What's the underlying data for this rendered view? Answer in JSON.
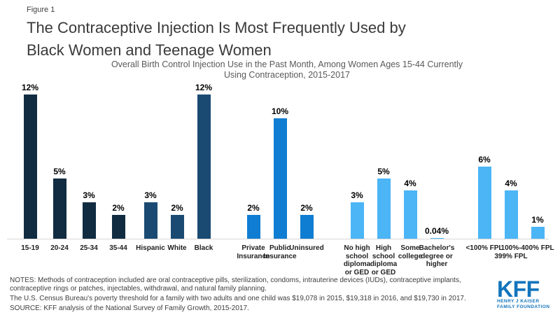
{
  "header": {
    "figure_label": "Figure 1",
    "title_line1": "The Contraceptive Injection Is Most Frequently Used by",
    "title_line2": "Black Women and Teenage Women",
    "subtitle_line1": "Overall Birth Control Injection Use in the Past Month, Among Women Ages 15-44 Currently",
    "subtitle_line2": "Using Contraception, 2015-2017"
  },
  "chart_data": {
    "type": "bar",
    "title": "The Contraceptive Injection Is Most Frequently Used by Black Women and Teenage Women",
    "subtitle": "Overall Birth Control Injection Use in the Past Month, Among Women Ages 15-44 Currently Using Contraception, 2015-2017",
    "unit": "%",
    "ylim": [
      0,
      13
    ],
    "grid": false,
    "legend": false,
    "value_labels_shown": true,
    "groups": [
      {
        "name": "age",
        "color": "#112c41",
        "bars": [
          {
            "label_lines": [
              "15-19"
            ],
            "value": 12,
            "display": "12%"
          },
          {
            "label_lines": [
              "20-24"
            ],
            "value": 5,
            "display": "5%"
          },
          {
            "label_lines": [
              "25-34"
            ],
            "value": 3,
            "display": "3%"
          },
          {
            "label_lines": [
              "35-44"
            ],
            "value": 2,
            "display": "2%"
          }
        ]
      },
      {
        "name": "race-ethnicity",
        "color": "#1a4a72",
        "bars": [
          {
            "label_lines": [
              "Hispanic"
            ],
            "value": 3,
            "display": "3%"
          },
          {
            "label_lines": [
              "White"
            ],
            "value": 2,
            "display": "2%"
          },
          {
            "label_lines": [
              "Black"
            ],
            "value": 12,
            "display": "12%"
          }
        ]
      },
      {
        "name": "insurance",
        "color": "#0f7dd2",
        "bars": [
          {
            "label_lines": [
              "Private",
              "Insurance"
            ],
            "value": 2,
            "display": "2%"
          },
          {
            "label_lines": [
              "Public",
              "Insurance"
            ],
            "value": 10,
            "display": "10%"
          },
          {
            "label_lines": [
              "Uninsured"
            ],
            "value": 2,
            "display": "2%"
          }
        ]
      },
      {
        "name": "education",
        "color": "#4bb5f6",
        "bars": [
          {
            "label_lines": [
              "No high",
              "school",
              "diploma",
              "or GED"
            ],
            "value": 3,
            "display": "3%"
          },
          {
            "label_lines": [
              "High",
              "school",
              "diploma",
              "or GED"
            ],
            "value": 5,
            "display": "5%"
          },
          {
            "label_lines": [
              "Some",
              "college"
            ],
            "value": 4,
            "display": "4%"
          },
          {
            "label_lines": [
              "Bachelor's",
              "degree or",
              "higher"
            ],
            "value": 0.04,
            "display": "0.04%"
          }
        ]
      },
      {
        "name": "poverty-level",
        "color": "#4bb5f6",
        "bars": [
          {
            "label_lines": [
              "<100% FPL"
            ],
            "value": 6,
            "display": "6%"
          },
          {
            "label_lines": [
              "100%-",
              "399% FPL"
            ],
            "value": 4,
            "display": "4%"
          },
          {
            "label_lines": [
              "400% FPL"
            ],
            "value": 1,
            "display": "1%"
          }
        ]
      }
    ]
  },
  "footer": {
    "notes": "NOTES: Methods of contraception included are oral contraceptive pills, sterilization, condoms, intrauterine devices (IUDs), contraceptive implants, contraceptive rings or patches, injectables, withdrawal, and natural family planning.",
    "poverty_note": "The U.S. Census Bureau's poverty threshold for a family with two adults and one child was $19,078 in 2015, $19,318 in 2016, and $19,730 in 2017.",
    "source": "SOURCE: KFF analysis of the National Survey of Family Growth, 2015-2017.",
    "logo": {
      "name": "KFF",
      "line1": "HENRY J KAISER",
      "line2": "FAMILY FOUNDATION"
    }
  }
}
